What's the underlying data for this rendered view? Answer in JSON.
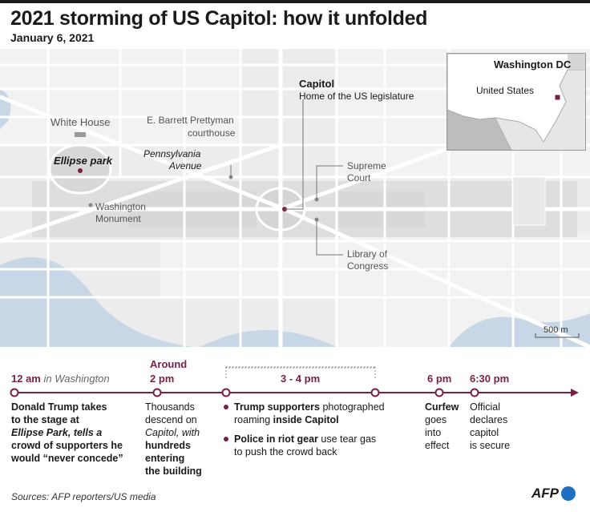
{
  "header": {
    "title": "2021 storming of US Capitol: how it unfolded",
    "subtitle": "January 6, 2021"
  },
  "map": {
    "labels": {
      "white_house": "White House",
      "ellipse_park": "Ellipse park",
      "courthouse_1": "E. Barrett Prettyman",
      "courthouse_2": "courthouse",
      "pennsylvania_1": "Pennsylvania",
      "pennsylvania_2": "Avenue",
      "capitol": "Capitol",
      "capitol_desc": "Home of the US legislature",
      "supreme_1": "Supreme",
      "supreme_2": "Court",
      "washington_1": "Washington",
      "washington_2": "Monument",
      "library_1": "Library of",
      "library_2": "Congress",
      "scale": "500 m"
    },
    "inset": {
      "city": "Washington DC",
      "country": "United States"
    },
    "colors": {
      "accent": "#7a1f45",
      "water": "#c8d7e6",
      "park": "#e4e4e4",
      "road": "#ffffff"
    }
  },
  "timeline": {
    "events": [
      {
        "time": "12 am",
        "time_note": "in Washington",
        "lines": [
          "Donald Trump takes",
          "to the stage at",
          "Ellipse Park, tells a",
          "crowd of supporters he",
          "would “never concede”"
        ]
      },
      {
        "time_line1": "Around",
        "time_line2": "2 pm",
        "lines": [
          "Thousands",
          "descend on",
          "Capitol, with",
          "hundreds",
          "entering",
          "the building"
        ]
      },
      {
        "time": "3 - 4 pm",
        "bullets": [
          {
            "bold1": "Trump supporters",
            "text1": " photographed",
            "text2": "roaming ",
            "bold2": "inside Capitol"
          },
          {
            "bold1": "Police in riot gear",
            "text1": " use tear gas",
            "text2": "to push the crowd back"
          }
        ]
      },
      {
        "time": "6 pm",
        "lines": [
          "Curfew",
          "goes",
          "into",
          "effect"
        ]
      },
      {
        "time": "6:30 pm",
        "lines": [
          "Official",
          "declares",
          "capitol",
          "is secure"
        ]
      }
    ]
  },
  "footer": {
    "source": "Sources: AFP reporters/US media",
    "logo": "AFP"
  }
}
